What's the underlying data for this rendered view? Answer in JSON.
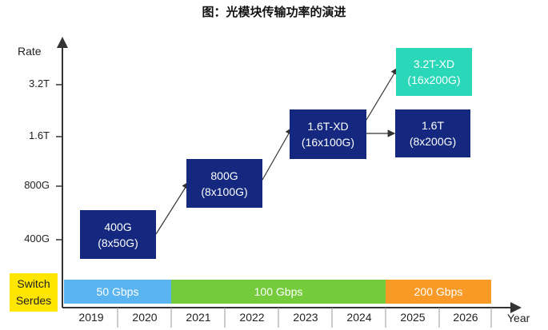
{
  "title": "图：光模块传输功率的演进",
  "axes": {
    "y_title": "Rate",
    "x_title": "Year",
    "y_ticks": [
      "3.2T",
      "1.6T",
      "800G",
      "400G"
    ]
  },
  "boxes": [
    {
      "line1": "400G",
      "line2": "(8x50G)"
    },
    {
      "line1": "800G",
      "line2": "(8x100G)"
    },
    {
      "line1": "1.6T-XD",
      "line2": "(16x100G)"
    },
    {
      "line1": "3.2T-XD",
      "line2": "(16x200G)"
    },
    {
      "line1": "1.6T",
      "line2": "(8x200G)"
    }
  ],
  "switch_serdes": {
    "line1": "Switch",
    "line2": "Serdes",
    "segments": [
      {
        "label": "50 Gbps",
        "color": "#5ab4ef"
      },
      {
        "label": "100 Gbps",
        "color": "#74cc3c"
      },
      {
        "label": "200 Gbps",
        "color": "#f99a26"
      }
    ]
  },
  "years": [
    "2019",
    "2020",
    "2021",
    "2022",
    "2023",
    "2024",
    "2025",
    "2026"
  ]
}
